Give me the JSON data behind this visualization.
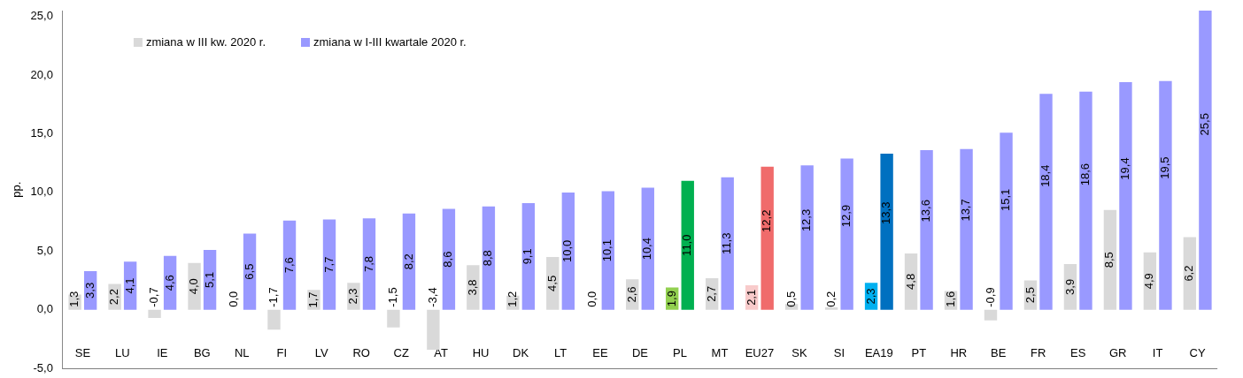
{
  "chart_data": {
    "type": "bar",
    "ylabel": "pp.",
    "legend": "top left",
    "grid": false,
    "categories": [
      "SE",
      "LU",
      "IE",
      "BG",
      "NL",
      "FI",
      "LV",
      "RO",
      "CZ",
      "AT",
      "HU",
      "DK",
      "LT",
      "EE",
      "DE",
      "PL",
      "MT",
      "EU27",
      "SK",
      "SI",
      "EA19",
      "PT",
      "HR",
      "BE",
      "FR",
      "ES",
      "GR",
      "IT",
      "CY"
    ],
    "ylim": [
      -5,
      25.5
    ],
    "yticks": [
      {
        "value": -5,
        "label": "-5,0"
      },
      {
        "value": 0,
        "label": "0,0"
      },
      {
        "value": 5,
        "label": "5,0"
      },
      {
        "value": 10,
        "label": "10,0"
      },
      {
        "value": 15,
        "label": "15,0"
      },
      {
        "value": 20,
        "label": "20,0"
      },
      {
        "value": 25,
        "label": "25,0"
      }
    ],
    "series": [
      {
        "name": "zmiana w III kw. 2020 r.",
        "color": "#d9d9d9",
        "colors": [
          "#d9d9d9",
          "#d9d9d9",
          "#d9d9d9",
          "#d9d9d9",
          "#d9d9d9",
          "#d9d9d9",
          "#d9d9d9",
          "#d9d9d9",
          "#d9d9d9",
          "#d9d9d9",
          "#d9d9d9",
          "#d9d9d9",
          "#d9d9d9",
          "#d9d9d9",
          "#d9d9d9",
          "#92d050",
          "#d9d9d9",
          "#f8cbcb",
          "#d9d9d9",
          "#d9d9d9",
          "#00b0f0",
          "#d9d9d9",
          "#d9d9d9",
          "#d9d9d9",
          "#d9d9d9",
          "#d9d9d9",
          "#d9d9d9",
          "#d9d9d9",
          "#d9d9d9"
        ],
        "values": [
          1.3,
          2.2,
          -0.7,
          4.0,
          0.0,
          -1.7,
          1.7,
          2.3,
          -1.5,
          -3.4,
          3.8,
          1.2,
          4.5,
          0.0,
          2.6,
          1.9,
          2.7,
          2.1,
          0.5,
          0.2,
          2.3,
          4.8,
          1.6,
          -0.9,
          2.5,
          3.9,
          8.5,
          4.9,
          6.2
        ],
        "value_labels": [
          "1,3",
          "2,2",
          "-0,7",
          "4,0",
          "0,0",
          "-1,7",
          "1,7",
          "2,3",
          "-1,5",
          "-3,4",
          "3,8",
          "1,2",
          "4,5",
          "0,0",
          "2,6",
          "1,9",
          "2,7",
          "2,1",
          "0,5",
          "0,2",
          "2,3",
          "4,8",
          "1,6",
          "-0,9",
          "2,5",
          "3,9",
          "8,5",
          "4,9",
          "6,2"
        ]
      },
      {
        "name": "zmiana w I-III kwartale 2020 r.",
        "color": "#9999ff",
        "colors": [
          "#9999ff",
          "#9999ff",
          "#9999ff",
          "#9999ff",
          "#9999ff",
          "#9999ff",
          "#9999ff",
          "#9999ff",
          "#9999ff",
          "#9999ff",
          "#9999ff",
          "#9999ff",
          "#9999ff",
          "#9999ff",
          "#9999ff",
          "#00b050",
          "#9999ff",
          "#f06b6b",
          "#9999ff",
          "#9999ff",
          "#0070c0",
          "#9999ff",
          "#9999ff",
          "#9999ff",
          "#9999ff",
          "#9999ff",
          "#9999ff",
          "#9999ff",
          "#9999ff"
        ],
        "values": [
          3.3,
          4.1,
          4.6,
          5.1,
          6.5,
          7.6,
          7.7,
          7.8,
          8.2,
          8.6,
          8.8,
          9.1,
          10.0,
          10.1,
          10.4,
          11.0,
          11.3,
          12.2,
          12.3,
          12.9,
          13.3,
          13.6,
          13.7,
          15.1,
          18.4,
          18.6,
          19.4,
          19.5,
          25.5
        ],
        "value_labels": [
          "3,3",
          "4,1",
          "4,6",
          "5,1",
          "6,5",
          "7,6",
          "7,7",
          "7,8",
          "8,2",
          "8,6",
          "8,8",
          "9,1",
          "10,0",
          "10,1",
          "10,4",
          "11,0",
          "11,3",
          "12,2",
          "12,3",
          "12,9",
          "13,3",
          "13,6",
          "13,7",
          "15,1",
          "18,4",
          "18,6",
          "19,4",
          "19,5",
          "25,5"
        ]
      }
    ]
  }
}
